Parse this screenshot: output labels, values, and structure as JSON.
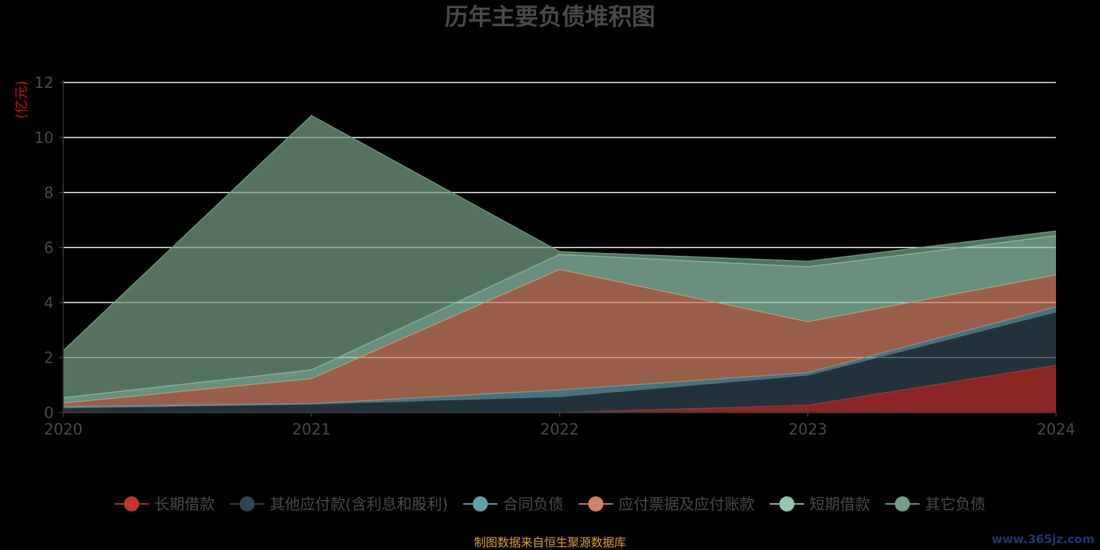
{
  "chart_data": {
    "type": "area",
    "stacked": true,
    "title": "历年主要负债堆积图",
    "unit_label": "(亿元)",
    "x": [
      "2020",
      "2021",
      "2022",
      "2023",
      "2024"
    ],
    "ylim": [
      0,
      12
    ],
    "yticks": [
      "0",
      "2",
      "4",
      "6",
      "8",
      "10",
      "12"
    ],
    "grid": true,
    "legend_position": "bottom",
    "series": [
      {
        "name": "长期借款",
        "color": "#c23531",
        "values": [
          0.0,
          0.0,
          0.0,
          0.27,
          1.72
        ]
      },
      {
        "name": "其他应付款(含利息和股利)",
        "color": "#2f4554",
        "values": [
          0.16,
          0.3,
          0.57,
          1.08,
          1.93
        ]
      },
      {
        "name": "合同负债",
        "color": "#61a0a8",
        "values": [
          0.05,
          0.02,
          0.25,
          0.1,
          0.19
        ]
      },
      {
        "name": "应付票据及应付账款",
        "color": "#d48265",
        "values": [
          0.13,
          0.91,
          4.38,
          1.85,
          1.16
        ]
      },
      {
        "name": "短期借款",
        "color": "#91c7ae",
        "values": [
          0.2,
          0.32,
          0.55,
          2.0,
          1.43
        ]
      },
      {
        "name": "其它负债",
        "color": "#749f83",
        "values": [
          1.71,
          9.25,
          0.1,
          0.2,
          0.17
        ]
      }
    ]
  },
  "footer": {
    "source": "制图数据来自恒生聚源数据库",
    "watermark": "www.365jz.com"
  }
}
